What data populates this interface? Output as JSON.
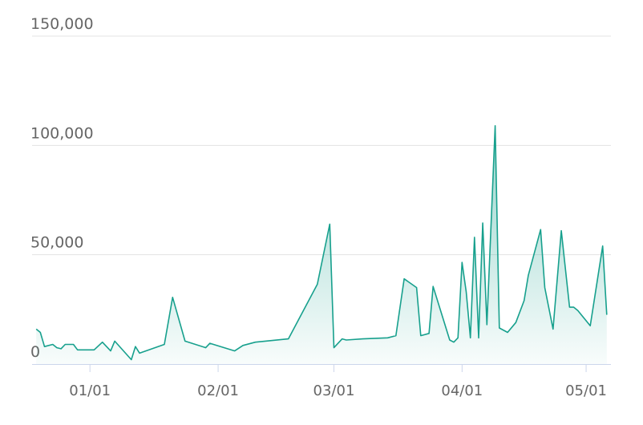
{
  "chart_data": {
    "type": "area",
    "x": [
      "12/19",
      "12/20",
      "12/21",
      "12/23",
      "12/24",
      "12/25",
      "12/26",
      "12/28",
      "12/29",
      "01/02",
      "01/04",
      "01/06",
      "01/07",
      "01/11",
      "01/12",
      "01/13",
      "01/19",
      "01/21",
      "01/24",
      "01/29",
      "01/30",
      "02/05",
      "02/07",
      "02/10",
      "02/18",
      "02/25",
      "02/28",
      "03/01",
      "03/03",
      "03/04",
      "03/08",
      "03/14",
      "03/16",
      "03/18",
      "03/21",
      "03/22",
      "03/24",
      "03/25",
      "03/29",
      "03/30",
      "03/31",
      "04/01",
      "04/02",
      "04/03",
      "04/04",
      "04/05",
      "04/06",
      "04/07",
      "04/09",
      "04/10",
      "04/12",
      "04/14",
      "04/16",
      "04/17",
      "04/20",
      "04/21",
      "04/23",
      "04/25",
      "04/27",
      "04/28",
      "04/29",
      "05/02",
      "05/05",
      "05/06"
    ],
    "series": [
      {
        "color": "#17a08d",
        "values": [
          16000,
          14500,
          8000,
          9000,
          7500,
          7000,
          9000,
          9000,
          6500,
          6500,
          10000,
          6000,
          10500,
          2000,
          8000,
          5000,
          9000,
          30500,
          10500,
          7500,
          9500,
          6000,
          8500,
          10000,
          11500,
          36500,
          64000,
          7500,
          11500,
          11000,
          11500,
          12000,
          13000,
          39000,
          35000,
          13000,
          14000,
          35500,
          11000,
          10000,
          12000,
          46500,
          33000,
          12000,
          58000,
          12000,
          64500,
          18000,
          109000,
          16500,
          14500,
          19000,
          29000,
          40500,
          61500,
          35000,
          16000,
          61000,
          26000,
          26000,
          24500,
          17500,
          54000,
          22500
        ]
      }
    ],
    "xlim": [
      "12/18",
      "05/07"
    ],
    "xticks": [
      "01/01",
      "02/01",
      "03/01",
      "04/01",
      "05/01"
    ],
    "ylim": [
      0,
      150000
    ],
    "yticks": [
      0,
      {
        "value": 50000,
        "label": "50,000"
      },
      {
        "value": 100000,
        "label": "100,000"
      },
      {
        "value": 150000,
        "label": "150,000"
      }
    ],
    "grid": true
  }
}
